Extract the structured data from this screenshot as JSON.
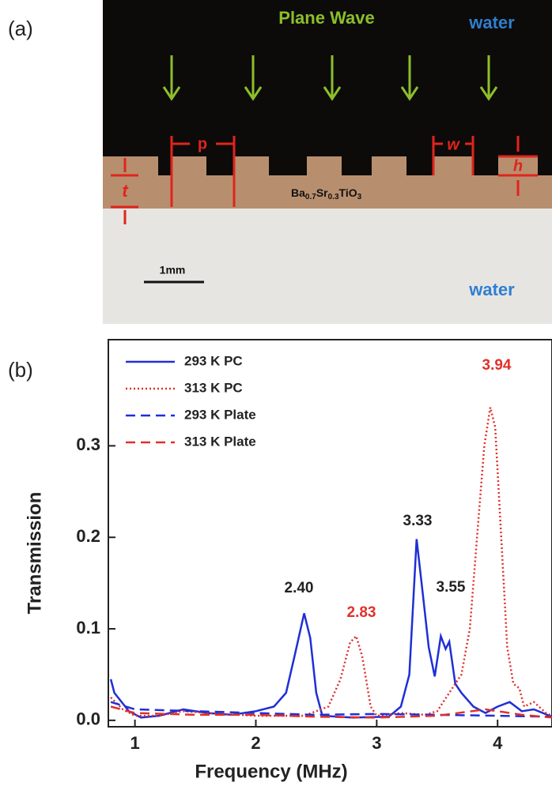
{
  "panel_a": {
    "label": "(a)",
    "wave": "Plane Wave",
    "top_medium": "water",
    "bottom_medium": "water",
    "dims": {
      "p": "p",
      "w": "w",
      "h": "h",
      "t": "t"
    },
    "formula": [
      "Ba",
      "0.7",
      "Sr",
      "0.3",
      "TiO",
      "3"
    ],
    "scale": "1mm"
  },
  "panel_b_label": "(b)",
  "chart_data": {
    "type": "line",
    "xlabel": "Frequency (MHz)",
    "ylabel": "Transmission",
    "xlim": [
      0.78,
      4.45
    ],
    "ylim": [
      -0.007,
      0.416
    ],
    "xticks": [
      1,
      2,
      3,
      4
    ],
    "yticks": [
      {
        "value": 0,
        "label": "0.0"
      },
      0.1,
      0.2,
      0.3
    ],
    "legend": "upper left",
    "series": [
      {
        "name": "293 K PC",
        "color": "#1f2fd6",
        "dash": "solid",
        "x": [
          0.8,
          0.83,
          0.86,
          0.95,
          1.05,
          1.2,
          1.4,
          1.6,
          1.8,
          2.0,
          2.15,
          2.25,
          2.32,
          2.4,
          2.45,
          2.5,
          2.55,
          2.8,
          3.1,
          3.2,
          3.27,
          3.33,
          3.38,
          3.43,
          3.48,
          3.53,
          3.57,
          3.6,
          3.65,
          3.7,
          3.8,
          3.9,
          4.0,
          4.1,
          4.2,
          4.3,
          4.45
        ],
        "values": [
          0.045,
          0.03,
          0.025,
          0.01,
          0.003,
          0.005,
          0.012,
          0.008,
          0.006,
          0.01,
          0.015,
          0.03,
          0.07,
          0.117,
          0.09,
          0.03,
          0.005,
          0.003,
          0.004,
          0.015,
          0.05,
          0.198,
          0.14,
          0.08,
          0.048,
          0.092,
          0.078,
          0.086,
          0.04,
          0.03,
          0.015,
          0.008,
          0.015,
          0.02,
          0.01,
          0.012,
          0.004
        ]
      },
      {
        "name": "313 K PC",
        "color": "#e0302a",
        "dash": "dotted",
        "x": [
          0.8,
          0.9,
          1.0,
          1.2,
          1.4,
          1.6,
          2.0,
          2.4,
          2.6,
          2.7,
          2.78,
          2.83,
          2.88,
          2.95,
          3.0,
          3.2,
          3.4,
          3.5,
          3.6,
          3.7,
          3.77,
          3.83,
          3.89,
          3.94,
          3.98,
          4.03,
          4.08,
          4.13,
          4.18,
          4.22,
          4.3,
          4.4,
          4.45
        ],
        "values": [
          0.025,
          0.012,
          0.005,
          0.005,
          0.01,
          0.008,
          0.005,
          0.005,
          0.015,
          0.045,
          0.085,
          0.092,
          0.07,
          0.015,
          0.005,
          0.008,
          0.006,
          0.01,
          0.03,
          0.05,
          0.1,
          0.2,
          0.3,
          0.342,
          0.32,
          0.2,
          0.08,
          0.04,
          0.035,
          0.015,
          0.02,
          0.008,
          0.005
        ]
      },
      {
        "name": "293 K Plate",
        "color": "#1f2fd6",
        "dash": "dashed",
        "x": [
          0.8,
          1.0,
          1.5,
          2.0,
          2.5,
          3.0,
          3.5,
          4.0,
          4.45
        ],
        "values": [
          0.02,
          0.012,
          0.01,
          0.008,
          0.006,
          0.007,
          0.006,
          0.005,
          0.004
        ]
      },
      {
        "name": "313 K Plate",
        "color": "#e0302a",
        "dash": "dashed",
        "x": [
          0.8,
          1.0,
          1.5,
          2.0,
          2.5,
          3.0,
          3.5,
          3.9,
          4.2,
          4.45
        ],
        "values": [
          0.015,
          0.008,
          0.006,
          0.006,
          0.004,
          0.003,
          0.005,
          0.012,
          0.006,
          0.003
        ]
      }
    ],
    "annotations": [
      {
        "text": "2.40",
        "color": "#222222"
      },
      {
        "text": "2.83",
        "color": "#e0302a"
      },
      {
        "text": "3.33",
        "color": "#222222"
      },
      {
        "text": "3.55",
        "color": "#222222"
      },
      {
        "text": "3.94",
        "color": "#e0302a"
      }
    ]
  }
}
